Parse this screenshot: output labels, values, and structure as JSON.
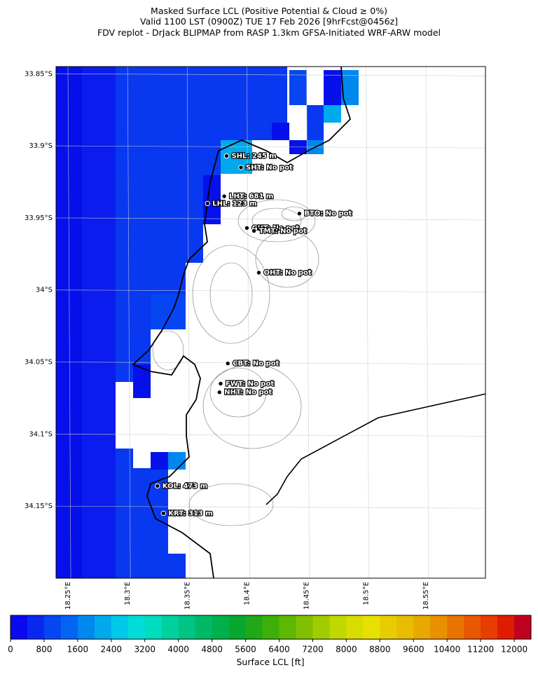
{
  "title": [
    "Masked Surface LCL (Positive Potential & Cloud ≥ 0%)",
    "Valid 1100 LST (0900Z) TUE 17 Feb 2026 [9hrFcst@0456z]",
    "FDV replot - DrJack BLIPMAP from RASP 1.3km GFSA-Initiated WRF-ARW model"
  ],
  "map": {
    "xlim": [
      18.24,
      18.6
    ],
    "ylim": [
      -34.2,
      -33.845
    ],
    "lon_ticks": [
      {
        "value": 18.25,
        "label": "18.25°E"
      },
      {
        "value": 18.3,
        "label": "18.3°E"
      },
      {
        "value": 18.35,
        "label": "18.35°E"
      },
      {
        "value": 18.4,
        "label": "18.4°E"
      },
      {
        "value": 18.45,
        "label": "18.45°E"
      },
      {
        "value": 18.5,
        "label": "18.5°E"
      },
      {
        "value": 18.55,
        "label": "18.55°E"
      }
    ],
    "lat_ticks": [
      {
        "value": -33.85,
        "label": "33.85°S"
      },
      {
        "value": -33.9,
        "label": "33.9°S"
      },
      {
        "value": -33.95,
        "label": "33.95°S"
      },
      {
        "value": -34.0,
        "label": "34°S"
      },
      {
        "value": -34.05,
        "label": "34.05°S"
      },
      {
        "value": -34.1,
        "label": "34.1°S"
      },
      {
        "value": -34.15,
        "label": "34.15°S"
      }
    ],
    "stations": [
      {
        "label": "SHL: 245 m",
        "lon": 18.383,
        "lat": -33.907
      },
      {
        "label": "SHT: No pot",
        "lon": 18.395,
        "lat": -33.915
      },
      {
        "label": "LHT: 681 m",
        "lon": 18.381,
        "lat": -33.935
      },
      {
        "label": "LHL: 123 m",
        "lon": 18.367,
        "lat": -33.94
      },
      {
        "label": "BTO: No pot",
        "lon": 18.444,
        "lat": -33.947
      },
      {
        "label": "GUT: No pot",
        "lon": 18.4,
        "lat": -33.957
      },
      {
        "label": "TMT: No pot",
        "lon": 18.406,
        "lat": -33.959
      },
      {
        "label": "OHT: No pot",
        "lon": 18.41,
        "lat": -33.988
      },
      {
        "label": "CBT: No pot",
        "lon": 18.384,
        "lat": -34.051
      },
      {
        "label": "FWT: No pot",
        "lon": 18.378,
        "lat": -34.065
      },
      {
        "label": "NHT: No pot",
        "lon": 18.377,
        "lat": -34.071
      },
      {
        "label": "KOL: 473 m",
        "lon": 18.325,
        "lat": -34.136
      },
      {
        "label": "KRT: 313 m",
        "lon": 18.33,
        "lat": -34.155
      }
    ]
  },
  "colorbar": {
    "label": "Surface LCL [ft]",
    "range": [
      0,
      12400
    ],
    "ticks": [
      0,
      800,
      1600,
      2400,
      3200,
      4000,
      4800,
      5600,
      6400,
      7200,
      8000,
      8800,
      9600,
      10400,
      11200,
      12000
    ],
    "colors": [
      "#0a0aee",
      "#0828f0",
      "#0646f2",
      "#0464f2",
      "#0088ee",
      "#00aaec",
      "#00c8e8",
      "#00dcd8",
      "#00dcc0",
      "#00d0a0",
      "#00c484",
      "#00b868",
      "#00b04c",
      "#08a830",
      "#20a818",
      "#3cb008",
      "#5cb800",
      "#80c000",
      "#a0cc00",
      "#c0d800",
      "#d8dc00",
      "#e8e000",
      "#e8cc00",
      "#e8bc00",
      "#e8a800",
      "#e89000",
      "#e87400",
      "#e85800",
      "#e83c00",
      "#e01c00",
      "#c00020"
    ]
  }
}
